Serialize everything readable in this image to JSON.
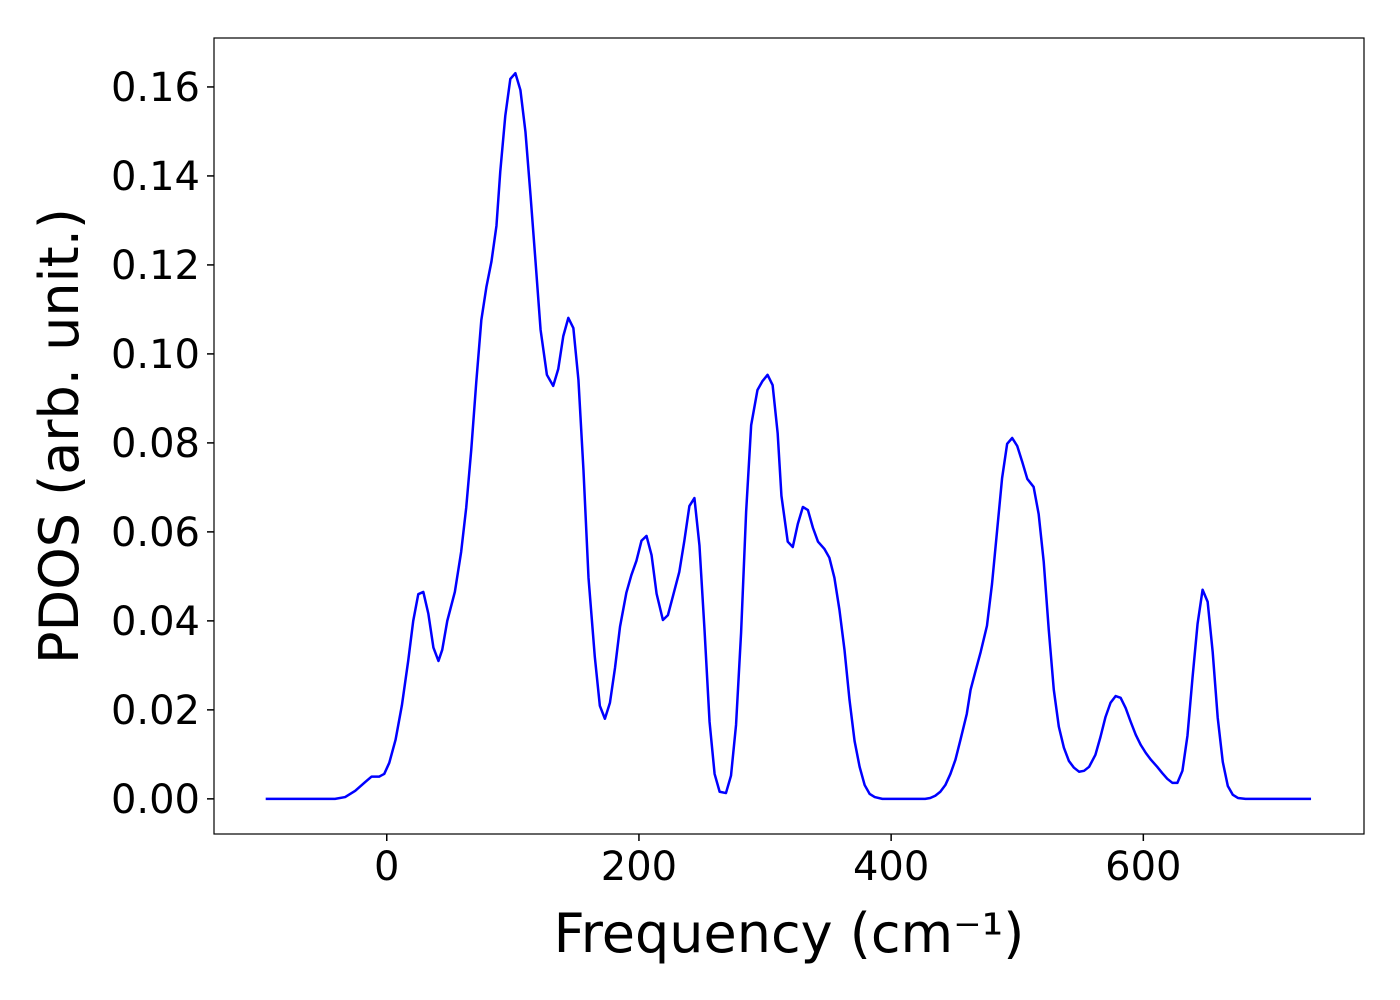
{
  "chart_data": {
    "type": "line",
    "x_label": "Frequency (cm⁻¹)",
    "y_label": "PDOS (arb. unit.)",
    "xlim": [
      -137,
      775
    ],
    "ylim": [
      -0.0079,
      0.171
    ],
    "xticks": [
      0,
      200,
      400,
      600
    ],
    "yticks": [
      {
        "value": 0,
        "label": "0.00"
      },
      {
        "value": 0.02,
        "label": "0.02"
      },
      {
        "value": 0.04,
        "label": "0.04"
      },
      {
        "value": 0.06,
        "label": "0.06"
      },
      {
        "value": 0.08,
        "label": "0.08"
      },
      {
        "value": 0.1,
        "label": "0.10"
      },
      {
        "value": 0.12,
        "label": "0.12"
      },
      {
        "value": 0.14,
        "label": "0.14"
      },
      {
        "value": 0.16,
        "label": "0.16"
      }
    ],
    "grid": false,
    "x": [
      -96,
      -41,
      -33,
      -25,
      -17,
      -12,
      -6,
      -2,
      2,
      7,
      12,
      17,
      21,
      25,
      29,
      33,
      37,
      41,
      44,
      48,
      54,
      59,
      63,
      67,
      71,
      75,
      79,
      83,
      87,
      90,
      94,
      98,
      102,
      106,
      110,
      114,
      118,
      122,
      127,
      132,
      136,
      140,
      144,
      148,
      152,
      156,
      160,
      165,
      169,
      173,
      177,
      181,
      185,
      190,
      194,
      198,
      202,
      206,
      210,
      214,
      219,
      223,
      227,
      232,
      236,
      240,
      244,
      248,
      252,
      256,
      260,
      264,
      269,
      273,
      277,
      281,
      285,
      289,
      294,
      298,
      302,
      306,
      310,
      313,
      318,
      322,
      326,
      330,
      334,
      338,
      342,
      347,
      351,
      355,
      359,
      363,
      367,
      371,
      375,
      379,
      383,
      387,
      393,
      427,
      431,
      435,
      439,
      443,
      447,
      451,
      455,
      460,
      463,
      467,
      471,
      476,
      480,
      484,
      488,
      492,
      496,
      500,
      504,
      508,
      513,
      517,
      521,
      525,
      529,
      533,
      537,
      541,
      545,
      549,
      553,
      557,
      562,
      566,
      570,
      574,
      578,
      582,
      586,
      590,
      594,
      598,
      602,
      606,
      611,
      615,
      619,
      623,
      627,
      631,
      635,
      639,
      643,
      647,
      651,
      655,
      659,
      663,
      667,
      671,
      675,
      681,
      733
    ],
    "series": [
      {
        "name": "PDOS",
        "color": "#0000ff",
        "values": [
          0,
          0,
          0.0004,
          0.0018,
          0.0038,
          0.005,
          0.005,
          0.0056,
          0.0081,
          0.0133,
          0.021,
          0.031,
          0.04,
          0.046,
          0.0465,
          0.0416,
          0.034,
          0.031,
          0.0335,
          0.04,
          0.0465,
          0.0555,
          0.0654,
          0.0784,
          0.0937,
          0.1076,
          0.115,
          0.1207,
          0.1288,
          0.1409,
          0.1535,
          0.1618,
          0.1631,
          0.1593,
          0.1499,
          0.1357,
          0.1207,
          0.1054,
          0.0953,
          0.0928,
          0.0966,
          0.104,
          0.1081,
          0.1058,
          0.0942,
          0.0739,
          0.0497,
          0.0319,
          0.0209,
          0.018,
          0.0216,
          0.0294,
          0.0387,
          0.0463,
          0.0503,
          0.0535,
          0.058,
          0.0591,
          0.0548,
          0.0461,
          0.0402,
          0.0413,
          0.0456,
          0.051,
          0.058,
          0.0658,
          0.0676,
          0.0569,
          0.038,
          0.0173,
          0.0056,
          0.0016,
          0.0013,
          0.0052,
          0.0166,
          0.0373,
          0.0645,
          0.084,
          0.0919,
          0.0939,
          0.0953,
          0.093,
          0.0822,
          0.0681,
          0.0578,
          0.0566,
          0.0618,
          0.0656,
          0.0649,
          0.0609,
          0.0578,
          0.0562,
          0.0542,
          0.0497,
          0.0425,
          0.0335,
          0.0222,
          0.013,
          0.0072,
          0.0031,
          0.0011,
          0.0004,
          0,
          0,
          0.0002,
          0.0007,
          0.0016,
          0.0031,
          0.0056,
          0.0088,
          0.0133,
          0.0191,
          0.0245,
          0.0288,
          0.033,
          0.0389,
          0.0483,
          0.0602,
          0.0721,
          0.0798,
          0.0811,
          0.0793,
          0.0757,
          0.0719,
          0.0701,
          0.064,
          0.0533,
          0.038,
          0.0245,
          0.0162,
          0.0115,
          0.0085,
          0.007,
          0.0061,
          0.0063,
          0.0072,
          0.0099,
          0.0139,
          0.0184,
          0.0216,
          0.0231,
          0.0227,
          0.0204,
          0.0173,
          0.0144,
          0.0121,
          0.0103,
          0.0088,
          0.0072,
          0.0058,
          0.0045,
          0.0036,
          0.0036,
          0.0063,
          0.0142,
          0.0272,
          0.0393,
          0.047,
          0.0443,
          0.033,
          0.0182,
          0.0083,
          0.0029,
          0.0009,
          0.0002,
          0,
          0
        ]
      }
    ]
  }
}
